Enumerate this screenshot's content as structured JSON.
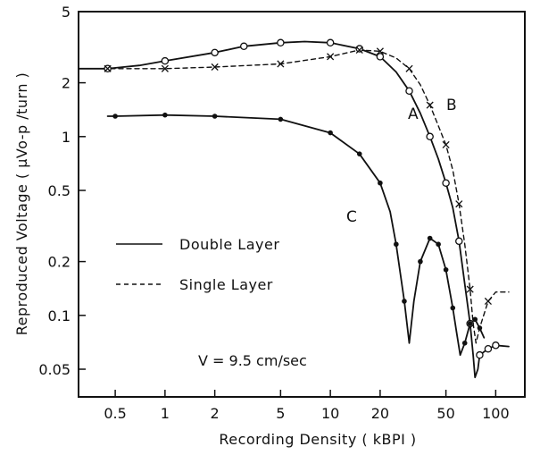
{
  "chart_data": {
    "type": "line",
    "title": "",
    "xlabel": "Recording Density     ( kBPI )",
    "ylabel": "Reproduced   Voltage   ( μVo-p /turn )",
    "x_scale": "log",
    "y_scale": "log",
    "xlim": [
      0.3,
      150
    ],
    "ylim": [
      0.035,
      5
    ],
    "x_ticks": [
      0.5,
      1,
      2,
      5,
      10,
      20,
      50,
      100
    ],
    "x_tick_labels": [
      "0.5",
      "1",
      "2",
      "5",
      "10",
      "20",
      "50",
      "100"
    ],
    "y_ticks": [
      0.05,
      0.1,
      0.2,
      0.5,
      1,
      2,
      5
    ],
    "y_tick_labels": [
      "0.05",
      "0.1",
      "0.2",
      "0.5",
      "1",
      "2",
      "5"
    ],
    "grid": false,
    "legend": {
      "placement": "center-left",
      "entries": [
        {
          "label": "Double Layer",
          "style": "solid"
        },
        {
          "label": "Single Layer",
          "style": "dashed"
        }
      ]
    },
    "annotation": "V = 9.5 cm/sec",
    "series": [
      {
        "name": "A",
        "label": "A",
        "style": "solid",
        "marker": "open-circle",
        "points": [
          [
            0.45,
            2.4
          ],
          [
            1,
            2.65
          ],
          [
            2,
            2.95
          ],
          [
            3,
            3.2
          ],
          [
            5,
            3.35
          ],
          [
            10,
            3.35
          ],
          [
            15,
            3.1
          ],
          [
            20,
            2.8
          ],
          [
            30,
            1.8
          ],
          [
            40,
            1.0
          ],
          [
            50,
            0.55
          ],
          [
            60,
            0.26
          ],
          [
            70,
            0.09
          ],
          [
            80,
            0.06
          ],
          [
            90,
            0.065
          ],
          [
            100,
            0.068
          ]
        ],
        "line": [
          [
            0.3,
            2.4
          ],
          [
            0.45,
            2.4
          ],
          [
            0.7,
            2.5
          ],
          [
            1,
            2.65
          ],
          [
            2,
            2.95
          ],
          [
            3,
            3.2
          ],
          [
            5,
            3.35
          ],
          [
            7,
            3.4
          ],
          [
            10,
            3.35
          ],
          [
            15,
            3.1
          ],
          [
            20,
            2.8
          ],
          [
            25,
            2.3
          ],
          [
            30,
            1.8
          ],
          [
            35,
            1.35
          ],
          [
            40,
            1.0
          ],
          [
            45,
            0.75
          ],
          [
            50,
            0.55
          ],
          [
            55,
            0.4
          ],
          [
            60,
            0.26
          ],
          [
            65,
            0.15
          ],
          [
            70,
            0.09
          ],
          [
            73,
            0.06
          ],
          [
            75,
            0.045
          ],
          [
            78,
            0.05
          ],
          [
            80,
            0.06
          ],
          [
            90,
            0.065
          ],
          [
            100,
            0.068
          ],
          [
            120,
            0.067
          ]
        ],
        "marked_x": [
          0.45,
          1,
          2,
          3,
          5,
          10,
          15,
          20,
          30,
          40,
          50,
          60,
          70,
          80,
          90,
          100
        ]
      },
      {
        "name": "B",
        "label": "B",
        "style": "dashed",
        "marker": "cross",
        "points": [
          [
            0.45,
            2.4
          ],
          [
            1,
            2.4
          ],
          [
            2,
            2.45
          ],
          [
            5,
            2.55
          ],
          [
            10,
            2.8
          ],
          [
            15,
            3.05
          ],
          [
            20,
            3.0
          ],
          [
            30,
            2.4
          ],
          [
            40,
            1.5
          ],
          [
            50,
            0.9
          ],
          [
            60,
            0.42
          ],
          [
            70,
            0.14
          ],
          [
            90,
            0.12
          ]
        ],
        "line": [
          [
            0.3,
            2.4
          ],
          [
            0.45,
            2.4
          ],
          [
            1,
            2.4
          ],
          [
            2,
            2.45
          ],
          [
            5,
            2.55
          ],
          [
            10,
            2.8
          ],
          [
            15,
            3.05
          ],
          [
            20,
            3.0
          ],
          [
            25,
            2.75
          ],
          [
            30,
            2.4
          ],
          [
            35,
            1.95
          ],
          [
            40,
            1.5
          ],
          [
            45,
            1.15
          ],
          [
            50,
            0.9
          ],
          [
            55,
            0.65
          ],
          [
            60,
            0.42
          ],
          [
            65,
            0.25
          ],
          [
            70,
            0.14
          ],
          [
            73,
            0.09
          ],
          [
            76,
            0.07
          ],
          [
            80,
            0.085
          ],
          [
            90,
            0.12
          ],
          [
            100,
            0.135
          ],
          [
            120,
            0.135
          ]
        ],
        "marked_x": [
          0.45,
          1,
          2,
          5,
          10,
          15,
          20,
          30,
          40,
          50,
          60,
          70,
          90
        ]
      },
      {
        "name": "C",
        "label": "C",
        "style": "solid",
        "marker": "filled-circle",
        "points": [
          [
            0.5,
            1.3
          ],
          [
            1,
            1.32
          ],
          [
            2,
            1.3
          ],
          [
            5,
            1.25
          ],
          [
            10,
            1.05
          ],
          [
            15,
            0.8
          ],
          [
            20,
            0.55
          ],
          [
            25,
            0.25
          ],
          [
            28,
            0.12
          ],
          [
            35,
            0.2
          ],
          [
            40,
            0.27
          ],
          [
            45,
            0.25
          ],
          [
            50,
            0.18
          ],
          [
            55,
            0.11
          ],
          [
            65,
            0.07
          ],
          [
            70,
            0.09
          ],
          [
            75,
            0.095
          ],
          [
            80,
            0.085
          ]
        ],
        "line": [
          [
            0.45,
            1.3
          ],
          [
            0.5,
            1.3
          ],
          [
            1,
            1.32
          ],
          [
            2,
            1.3
          ],
          [
            5,
            1.25
          ],
          [
            10,
            1.05
          ],
          [
            15,
            0.8
          ],
          [
            20,
            0.55
          ],
          [
            23,
            0.38
          ],
          [
            25,
            0.25
          ],
          [
            28,
            0.12
          ],
          [
            30,
            0.07
          ],
          [
            32,
            0.12
          ],
          [
            35,
            0.2
          ],
          [
            40,
            0.27
          ],
          [
            45,
            0.25
          ],
          [
            50,
            0.18
          ],
          [
            55,
            0.11
          ],
          [
            58,
            0.08
          ],
          [
            61,
            0.06
          ],
          [
            65,
            0.07
          ],
          [
            70,
            0.09
          ],
          [
            75,
            0.095
          ],
          [
            80,
            0.085
          ],
          [
            85,
            0.075
          ]
        ],
        "marked_x": [
          0.5,
          1,
          2,
          5,
          10,
          15,
          20,
          25,
          28,
          35,
          40,
          45,
          50,
          55,
          65,
          70,
          75,
          80
        ]
      }
    ]
  }
}
